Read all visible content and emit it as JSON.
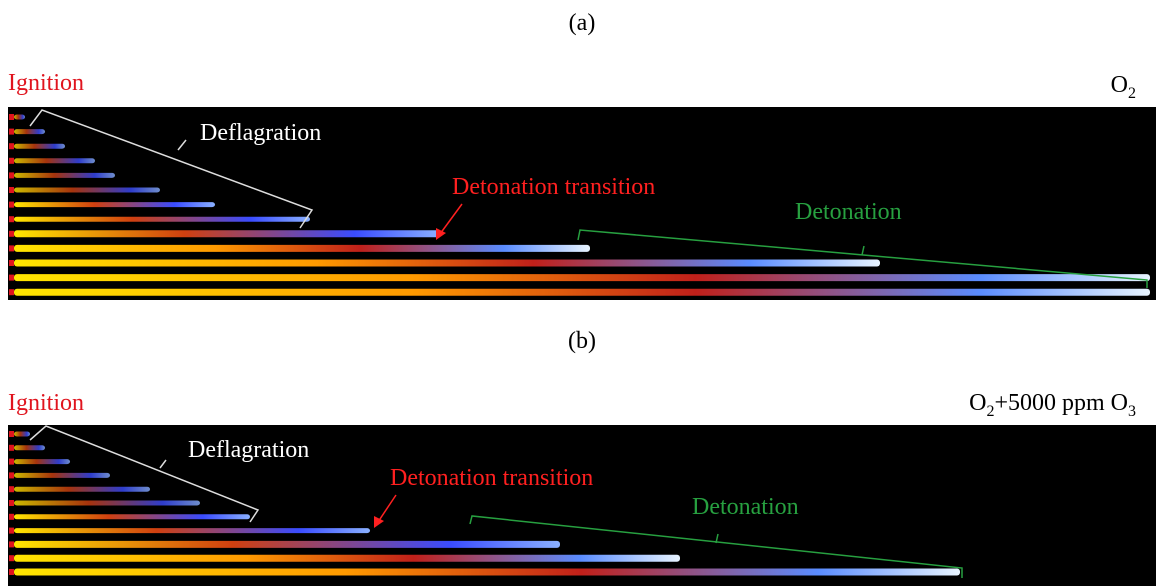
{
  "panels": [
    {
      "label": "(a)",
      "ignition": "Ignition",
      "mixture": {
        "base": "O",
        "sub": "2"
      },
      "annotations": {
        "deflagration": "Deflagration",
        "transition": "Detonation transition",
        "detonation": "Detonation"
      }
    },
    {
      "label": "(b)",
      "ignition": "Ignition",
      "mixture": {
        "base": "O",
        "sub": "2",
        "rest": "+5000 ppm O",
        "sub2": "3"
      },
      "annotations": {
        "deflagration": "Deflagration",
        "transition": "Detonation transition",
        "detonation": "Detonation"
      }
    }
  ]
}
